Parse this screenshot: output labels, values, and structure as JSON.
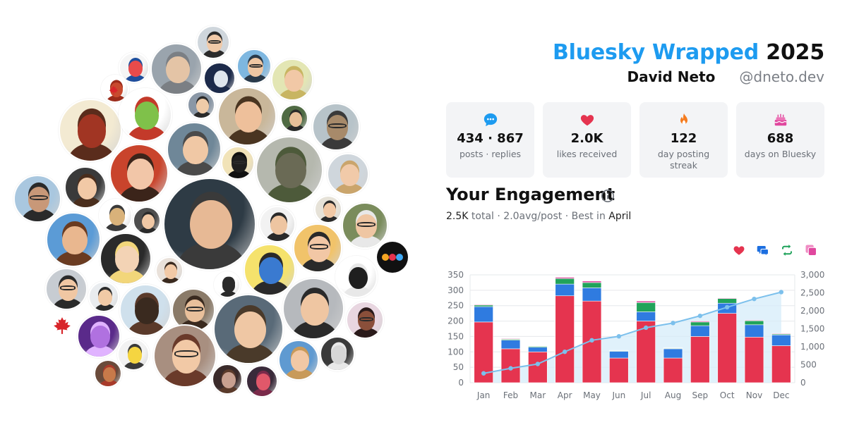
{
  "header": {
    "brand": "Bluesky Wrapped",
    "year": "2025",
    "display_name": "David Neto",
    "handle": "@dneto.dev"
  },
  "stats": [
    {
      "icon": "chat-bubble-icon",
      "value": "434 · 867",
      "label": "posts · replies",
      "color": "#1d9bf0"
    },
    {
      "icon": "heart-icon",
      "value": "2.0K",
      "label": "likes received",
      "color": "#e5344f"
    },
    {
      "icon": "flame-icon",
      "value": "122",
      "label": "day posting streak",
      "color": "#f57c1f"
    },
    {
      "icon": "cake-icon",
      "value": "688",
      "label": "days on Bluesky",
      "color": "#e0479e"
    }
  ],
  "engagement": {
    "title": "Your Engagement",
    "total_value": "2.5K",
    "total_word": "total",
    "avg_value": "2.0",
    "avg_word": "avg/post",
    "best_prefix": "Best in",
    "best_month": "April",
    "legend": [
      {
        "icon": "heart-icon",
        "color": "#e5344f"
      },
      {
        "icon": "reply-icon",
        "color": "#1d6fe0"
      },
      {
        "icon": "repost-icon",
        "color": "#1ea25a"
      },
      {
        "icon": "quote-icon",
        "color": "#e0479e"
      }
    ]
  },
  "chart_data": {
    "type": "bar",
    "stacked": true,
    "categories": [
      "Jan",
      "Feb",
      "Mar",
      "Apr",
      "May",
      "Jun",
      "Jul",
      "Aug",
      "Sep",
      "Oct",
      "Nov",
      "Dec"
    ],
    "series": [
      {
        "values": [
          197,
          110,
          100,
          282,
          265,
          80,
          200,
          80,
          150,
          225,
          148,
          120
        ],
        "color": "#e5344f"
      },
      {
        "values": [
          50,
          28,
          15,
          38,
          43,
          22,
          30,
          30,
          35,
          33,
          40,
          35
        ],
        "color": "#2f7be0"
      },
      {
        "values": [
          5,
          3,
          3,
          18,
          17,
          2,
          30,
          2,
          12,
          15,
          13,
          3
        ],
        "color": "#21a35a"
      },
      {
        "values": [
          2,
          2,
          1,
          4,
          5,
          1,
          5,
          1,
          3,
          2,
          2,
          2
        ],
        "color": "#e0479e"
      }
    ],
    "cumulative": {
      "values": [
        260,
        400,
        520,
        860,
        1180,
        1290,
        1530,
        1660,
        1860,
        2100,
        2330,
        2520
      ],
      "color": "#7cc0ec"
    },
    "ylim": [
      0,
      350
    ],
    "yticks": [
      0,
      50,
      100,
      150,
      200,
      250,
      300,
      350
    ],
    "y2lim": [
      0,
      3000
    ],
    "y2ticks": [
      "0",
      "500",
      "1,000",
      "1,500",
      "2,000",
      "2,500",
      "3,000"
    ],
    "grid": true
  }
}
